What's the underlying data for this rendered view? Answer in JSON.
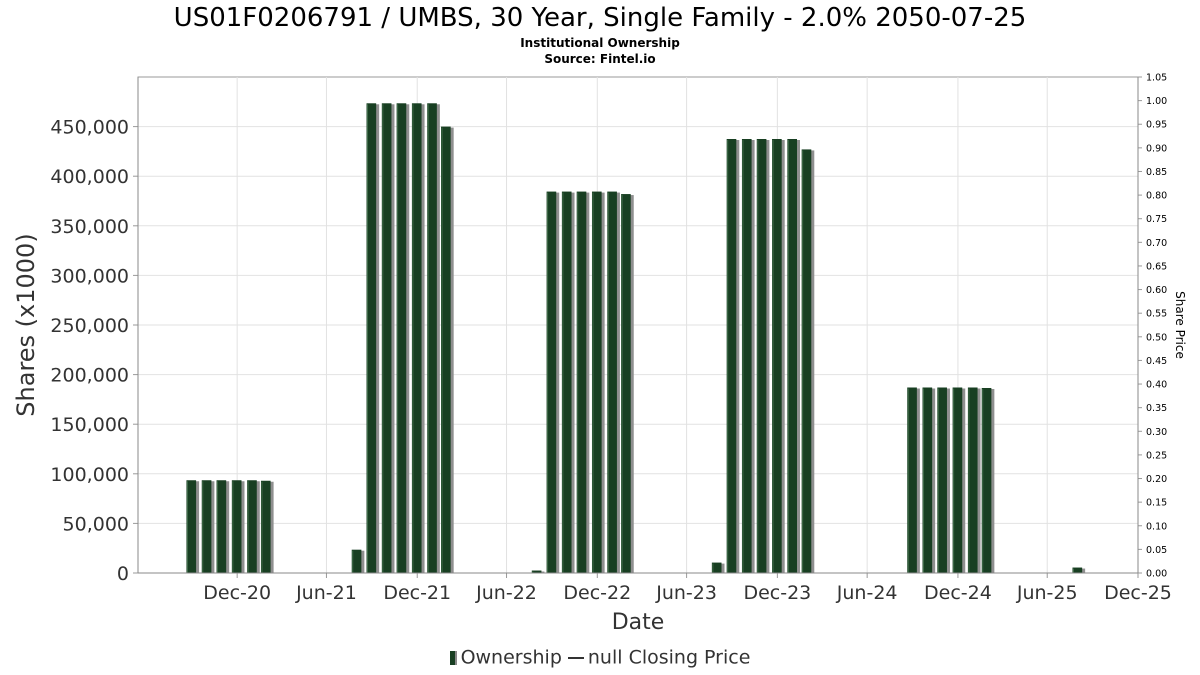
{
  "chart_data": {
    "type": "bar",
    "title": "US01F0206791 / UMBS, 30 Year, Single Family - 2.0% 2050-07-25",
    "subtitles": [
      "Institutional Ownership",
      "Source: Fintel.io"
    ],
    "xlabel": "Date",
    "ylabel": "Shares (x1000)",
    "y2label": "Share Price",
    "ylim": [
      0,
      500000
    ],
    "y2lim": [
      0,
      1.05
    ],
    "yticks": [
      "0",
      "50,000",
      "100,000",
      "150,000",
      "200,000",
      "250,000",
      "300,000",
      "350,000",
      "400,000",
      "450,000"
    ],
    "y2ticks": [
      "0.00",
      "0.05",
      "0.10",
      "0.15",
      "0.20",
      "0.25",
      "0.30",
      "0.35",
      "0.40",
      "0.45",
      "0.50",
      "0.55",
      "0.60",
      "0.65",
      "0.70",
      "0.75",
      "0.80",
      "0.85",
      "0.90",
      "0.95",
      "1.00",
      "1.05"
    ],
    "xticks": [
      "Dec-20",
      "Jun-21",
      "Dec-21",
      "Jun-22",
      "Dec-22",
      "Jun-23",
      "Dec-23",
      "Jun-24",
      "Dec-24",
      "Jun-25",
      "Dec-25"
    ],
    "x_start": "2020-06-13",
    "x_end": "2025-12-31",
    "grid": true,
    "legend_position": "bottom",
    "series": [
      {
        "name": "Ownership",
        "color": "#183f22",
        "points": [
          {
            "date": "2020-09-30",
            "value": 93500
          },
          {
            "date": "2020-10-31",
            "value": 93500
          },
          {
            "date": "2020-11-30",
            "value": 93500
          },
          {
            "date": "2020-12-31",
            "value": 93500
          },
          {
            "date": "2021-01-31",
            "value": 93500
          },
          {
            "date": "2021-02-28",
            "value": 93000
          },
          {
            "date": "2021-08-31",
            "value": 23500
          },
          {
            "date": "2021-09-30",
            "value": 473500
          },
          {
            "date": "2021-10-31",
            "value": 473500
          },
          {
            "date": "2021-11-30",
            "value": 473500
          },
          {
            "date": "2021-12-31",
            "value": 473500
          },
          {
            "date": "2022-01-31",
            "value": 473500
          },
          {
            "date": "2022-02-28",
            "value": 450000
          },
          {
            "date": "2022-08-31",
            "value": 2500
          },
          {
            "date": "2022-09-30",
            "value": 384500
          },
          {
            "date": "2022-10-31",
            "value": 384500
          },
          {
            "date": "2022-11-30",
            "value": 384500
          },
          {
            "date": "2022-12-31",
            "value": 384500
          },
          {
            "date": "2023-01-31",
            "value": 384500
          },
          {
            "date": "2023-02-28",
            "value": 382000
          },
          {
            "date": "2023-08-31",
            "value": 10500
          },
          {
            "date": "2023-09-30",
            "value": 437500
          },
          {
            "date": "2023-10-31",
            "value": 437500
          },
          {
            "date": "2023-11-30",
            "value": 437500
          },
          {
            "date": "2023-12-31",
            "value": 437500
          },
          {
            "date": "2024-01-31",
            "value": 437500
          },
          {
            "date": "2024-02-29",
            "value": 427000
          },
          {
            "date": "2024-09-30",
            "value": 187000
          },
          {
            "date": "2024-10-31",
            "value": 187000
          },
          {
            "date": "2024-11-30",
            "value": 187000
          },
          {
            "date": "2024-12-31",
            "value": 187000
          },
          {
            "date": "2025-01-31",
            "value": 187000
          },
          {
            "date": "2025-02-28",
            "value": 186500
          },
          {
            "date": "2025-08-31",
            "value": 5500
          }
        ]
      },
      {
        "name": "null Closing Price",
        "color": "#333333",
        "points": []
      }
    ]
  },
  "legend": {
    "ownership": "Ownership",
    "price": "null Closing Price"
  }
}
